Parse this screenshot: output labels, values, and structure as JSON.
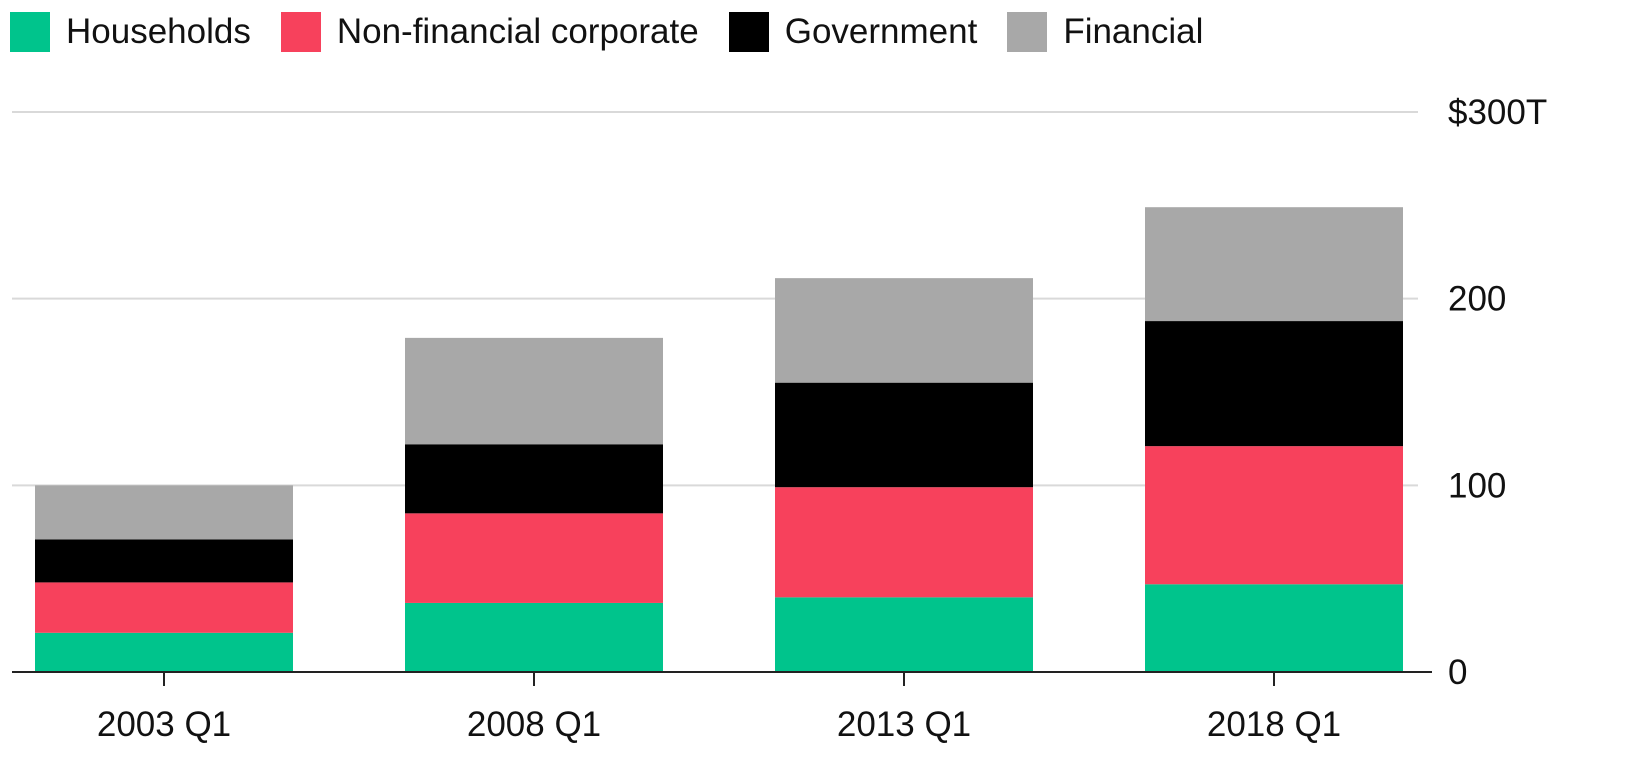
{
  "chart_data": {
    "type": "bar",
    "stacked": true,
    "categories": [
      "2003 Q1",
      "2008 Q1",
      "2013 Q1",
      "2018 Q1"
    ],
    "series": [
      {
        "name": "Households",
        "color": "#00c48c",
        "values": [
          21,
          37,
          40,
          47
        ]
      },
      {
        "name": "Non-financial corporate",
        "color": "#f7415c",
        "values": [
          27,
          48,
          59,
          74
        ]
      },
      {
        "name": "Government",
        "color": "#000000",
        "values": [
          23,
          37,
          56,
          67
        ]
      },
      {
        "name": "Financial",
        "color": "#a8a8a8",
        "values": [
          29,
          57,
          56,
          61
        ]
      }
    ],
    "ylim": [
      0,
      300
    ],
    "y_ticks": [
      {
        "value": 0,
        "label": "0"
      },
      {
        "value": 100,
        "label": "100"
      },
      {
        "value": 200,
        "label": "200"
      },
      {
        "value": 300,
        "label": "$300T"
      }
    ],
    "y_axis_side": "right",
    "grid": true,
    "legend": "top-left",
    "gridline_color": "#d9d9d9",
    "axis_color": "#222222"
  }
}
